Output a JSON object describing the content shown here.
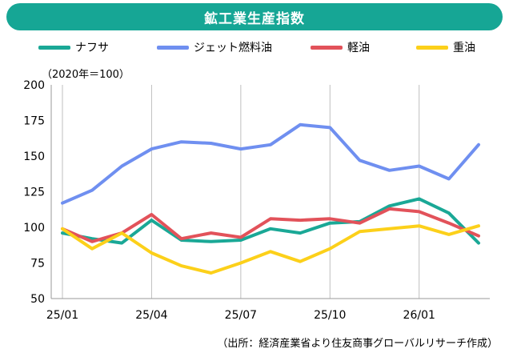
{
  "title": "鉱工業生産指数",
  "unit_note": "（2020年＝100）",
  "source_note": "（出所：経済産業省より住友商事グローバルリサーチ作成）",
  "chart_data": {
    "type": "line",
    "title": "鉱工業生産指数",
    "x": [
      "25/01",
      "25/02",
      "25/03",
      "25/04",
      "25/05",
      "25/06",
      "25/07",
      "25/08",
      "25/09",
      "25/10",
      "25/11",
      "25/12",
      "26/01",
      "26/02",
      "26/03"
    ],
    "x_tick_labels": [
      "25/01",
      "25/04",
      "25/07",
      "25/10",
      "26/01"
    ],
    "ylim": [
      50,
      200
    ],
    "y_ticks": [
      50,
      75,
      100,
      125,
      150,
      175,
      200
    ],
    "grid": "vertical",
    "legend_position": "top",
    "series": [
      {
        "name": "ナフサ",
        "color": "#1aa896",
        "values": [
          96,
          92,
          89,
          105,
          91,
          90,
          91,
          99,
          96,
          103,
          104,
          115,
          120,
          110,
          89
        ]
      },
      {
        "name": "ジェット燃料油",
        "color": "#6f8ff0",
        "values": [
          117,
          126,
          143,
          155,
          160,
          159,
          155,
          158,
          172,
          170,
          147,
          140,
          143,
          134,
          158
        ]
      },
      {
        "name": "軽油",
        "color": "#e2525a",
        "values": [
          99,
          90,
          96,
          109,
          92,
          96,
          93,
          106,
          105,
          106,
          103,
          113,
          111,
          103,
          94
        ]
      },
      {
        "name": "重油",
        "color": "#fcd01a",
        "values": [
          99,
          85,
          96,
          82,
          73,
          68,
          75,
          83,
          76,
          85,
          97,
          99,
          101,
          95,
          101
        ]
      }
    ]
  }
}
